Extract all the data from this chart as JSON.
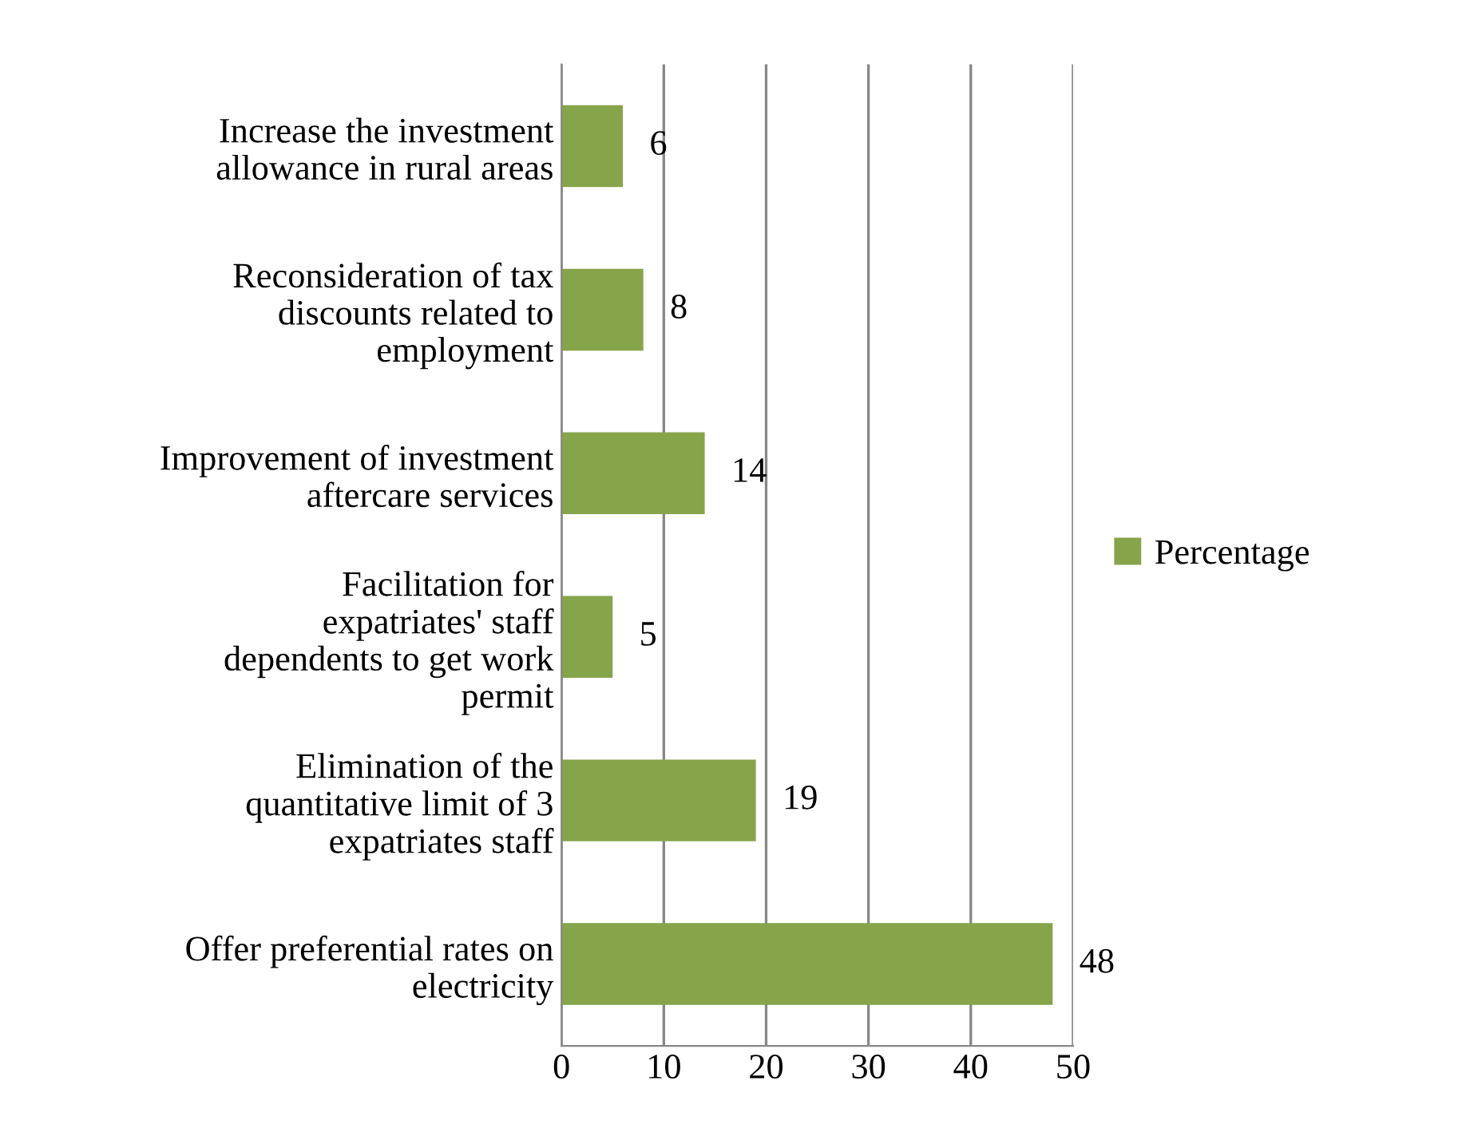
{
  "chart_data": {
    "type": "bar",
    "orientation": "horizontal",
    "categories": [
      "Increase the investment allowance in rural areas",
      "Reconsideration of tax discounts related to employment",
      "Improvement of investment aftercare services",
      "Facilitation for expatriates' staff dependents to get work permit",
      "Elimination of the quantitative limit of 3 expatriates staff",
      "Offer preferential rates on electricity"
    ],
    "series": [
      {
        "name": "Percentage",
        "color": "#86a44a",
        "values": [
          6,
          8,
          14,
          5,
          19,
          48
        ]
      }
    ],
    "xlim": [
      0,
      50
    ],
    "xticks": [
      0,
      10,
      20,
      30,
      40,
      50
    ],
    "grid": "x",
    "legend": "right",
    "data_labels": true
  }
}
